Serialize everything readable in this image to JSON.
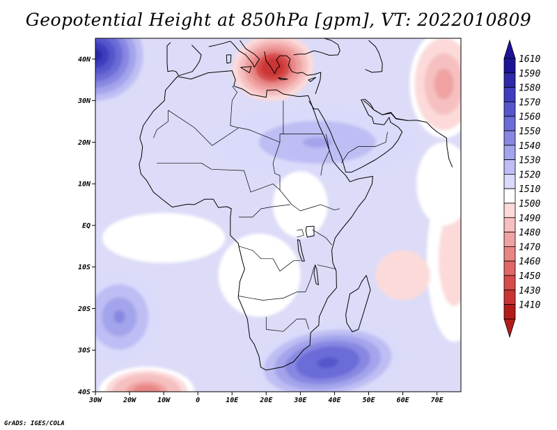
{
  "title": "Geopotential Height at 850hPa [gpm], VT: 2022010809",
  "credit": "GrADS: IGES/COLA",
  "map": {
    "lon_range": [
      -30,
      77
    ],
    "lat_range": [
      -40,
      45
    ],
    "lon_ticks": [
      {
        "value": -30,
        "label": "30W"
      },
      {
        "value": -20,
        "label": "20W"
      },
      {
        "value": -10,
        "label": "10W"
      },
      {
        "value": 0,
        "label": "0"
      },
      {
        "value": 10,
        "label": "10E"
      },
      {
        "value": 20,
        "label": "20E"
      },
      {
        "value": 30,
        "label": "30E"
      },
      {
        "value": 40,
        "label": "40E"
      },
      {
        "value": 50,
        "label": "50E"
      },
      {
        "value": 60,
        "label": "60E"
      },
      {
        "value": 70,
        "label": "70E"
      }
    ],
    "lat_ticks": [
      {
        "value": 40,
        "label": "40N"
      },
      {
        "value": 30,
        "label": "30N"
      },
      {
        "value": 20,
        "label": "20N"
      },
      {
        "value": 10,
        "label": "10N"
      },
      {
        "value": 0,
        "label": "EQ"
      },
      {
        "value": -10,
        "label": "10S"
      },
      {
        "value": -20,
        "label": "20S"
      },
      {
        "value": -30,
        "label": "30S"
      },
      {
        "value": -40,
        "label": "40S"
      }
    ]
  },
  "colorbar": {
    "levels": [
      {
        "label": "1610",
        "color": "#1e1496"
      },
      {
        "label": "1590",
        "color": "#2c2aa8"
      },
      {
        "label": "1580",
        "color": "#3e3ebe"
      },
      {
        "label": "1570",
        "color": "#5656cc"
      },
      {
        "label": "1560",
        "color": "#6c6cd8"
      },
      {
        "label": "1550",
        "color": "#8888e2"
      },
      {
        "label": "1540",
        "color": "#a4a4ec"
      },
      {
        "label": "1530",
        "color": "#bebef4"
      },
      {
        "label": "1520",
        "color": "#dadafa"
      },
      {
        "label": "1510",
        "color": "#ffffff"
      },
      {
        "label": "1500",
        "color": "#fcdada"
      },
      {
        "label": "1490",
        "color": "#f6c0c0"
      },
      {
        "label": "1480",
        "color": "#f0a2a2"
      },
      {
        "label": "1470",
        "color": "#e88686"
      },
      {
        "label": "1460",
        "color": "#e06868"
      },
      {
        "label": "1450",
        "color": "#d64c4c"
      },
      {
        "label": "1430",
        "color": "#ca3434"
      },
      {
        "label": "1410",
        "color": "#b41c1c"
      }
    ]
  },
  "field_features": [
    {
      "name": "azores-high",
      "lon": -30,
      "lat": 41,
      "value": 1600
    },
    {
      "name": "mediterranean-low",
      "lon": 22,
      "lat": 38,
      "value": 1425
    },
    {
      "name": "iran-low",
      "lon": 72,
      "lat": 34,
      "value": 1475
    },
    {
      "name": "south-african-high",
      "lon": 38,
      "lat": -33,
      "value": 1585
    },
    {
      "name": "south-atlantic-high",
      "lon": -23,
      "lat": -22,
      "value": 1555
    },
    {
      "name": "north-african-ridge",
      "lon": 35,
      "lat": 20,
      "value": 1545
    },
    {
      "name": "southwest-trough",
      "lon": -15,
      "lat": -40,
      "value": 1465
    },
    {
      "name": "east-indian-ocean-low",
      "lon": 75,
      "lat": -8,
      "value": 1500
    }
  ]
}
